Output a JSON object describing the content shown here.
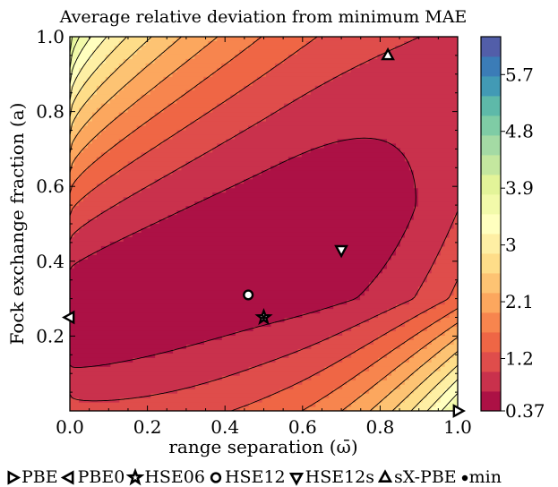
{
  "chart_data": {
    "type": "contour",
    "title": "Average relative deviation from minimum MAE",
    "xlabel": "range separation (ω̄)",
    "ylabel": "Fock exchange fraction (a)",
    "xlim": [
      0.0,
      1.0
    ],
    "ylim": [
      0.0,
      1.0
    ],
    "x_ticks": [
      "0.0",
      "0.2",
      "0.4",
      "0.6",
      "0.8",
      "1.0"
    ],
    "y_ticks": [
      "0.2",
      "0.4",
      "0.6",
      "0.8",
      "1.0"
    ],
    "colorbar": {
      "min": 0.37,
      "max": 6.3,
      "ticks": [
        {
          "value": 0.37,
          "label": "0.37"
        },
        {
          "value": 1.2,
          "label": "1.2"
        },
        {
          "value": 2.1,
          "label": "2.1"
        },
        {
          "value": 3.0,
          "label": "3"
        },
        {
          "value": 3.9,
          "label": "3.9"
        },
        {
          "value": 4.8,
          "label": "4.8"
        },
        {
          "value": 5.7,
          "label": "5.7"
        }
      ],
      "colormap": "Spectral"
    },
    "markers": [
      {
        "name": "PBE",
        "x": 1.0,
        "y": 0.0,
        "symbol": "triangle-right"
      },
      {
        "name": "PBE0",
        "x": 0.0,
        "y": 0.25,
        "symbol": "triangle-left"
      },
      {
        "name": "HSE06",
        "x": 0.5,
        "y": 0.25,
        "symbol": "star"
      },
      {
        "name": "HSE12",
        "x": 0.46,
        "y": 0.31,
        "symbol": "circle"
      },
      {
        "name": "HSE12s",
        "x": 0.7,
        "y": 0.43,
        "symbol": "triangle-down"
      },
      {
        "name": "sX-PBE",
        "x": 0.82,
        "y": 0.95,
        "symbol": "triangle-up"
      },
      {
        "name": "min",
        "x": 0.5,
        "y": 0.25,
        "symbol": "dot"
      }
    ],
    "legend": {
      "placement": "bottom",
      "entries": [
        {
          "symbol": "triangle-right",
          "label": "PBE"
        },
        {
          "symbol": "triangle-left",
          "label": "PBE0"
        },
        {
          "symbol": "star",
          "label": "HSE06"
        },
        {
          "symbol": "circle",
          "label": "HSE12"
        },
        {
          "symbol": "triangle-down",
          "label": "HSE12s"
        },
        {
          "symbol": "triangle-up",
          "label": "sX-PBE"
        },
        {
          "symbol": "dot",
          "label": "min"
        }
      ]
    }
  }
}
